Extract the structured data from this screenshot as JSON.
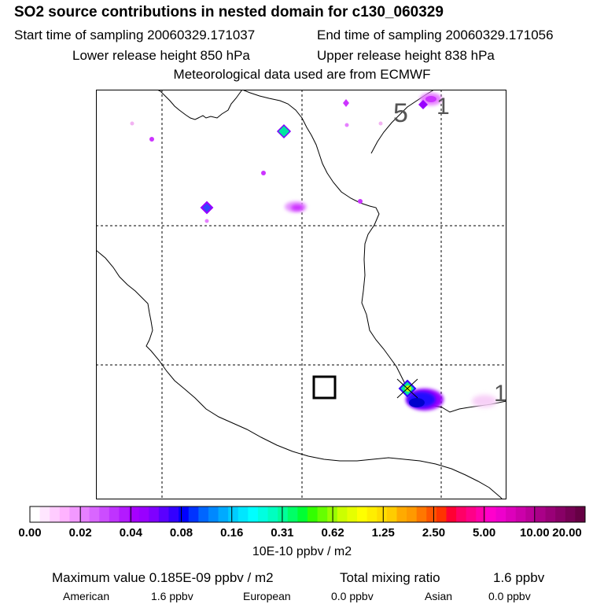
{
  "header": {
    "title": "SO2 source contributions in nested domain for c130_060329",
    "start_time": "Start time of sampling 20060329.171037",
    "end_time": "End time of sampling 20060329.171056",
    "lower_height": "Lower release height  850 hPa",
    "upper_height": "Upper release height  838 hPa",
    "met_data": "Meteorological data used are from ECMWF"
  },
  "map": {
    "annotations": [
      "5",
      "1",
      "1"
    ]
  },
  "colorbar": {
    "tick_labels": [
      "0.00",
      "0.02",
      "0.04",
      "0.08",
      "0.16",
      "0.31",
      "0.62",
      "1.25",
      "2.50",
      "5.00",
      "10.00",
      "20.00"
    ],
    "unit": "10E-10 ppbv / m2",
    "colors": [
      "#ffffff",
      "#ffe6ff",
      "#ffccff",
      "#ffb3ff",
      "#f299ff",
      "#e680ff",
      "#d966ff",
      "#cc4dff",
      "#bf33ff",
      "#b31aff",
      "#a600ff",
      "#9900ff",
      "#7f00ff",
      "#5a00ff",
      "#3300ff",
      "#0000ff",
      "#0033ff",
      "#0066ff",
      "#0088ff",
      "#00aaff",
      "#00ccff",
      "#00e6ff",
      "#00ffff",
      "#00ffe0",
      "#00ffc0",
      "#00ff99",
      "#00ff66",
      "#00ff33",
      "#33ff00",
      "#66ff00",
      "#99ff00",
      "#ccff00",
      "#e6ff00",
      "#ffff00",
      "#ffee00",
      "#ffdd00",
      "#ffcc00",
      "#ffaa00",
      "#ff9900",
      "#ff7700",
      "#ff5500",
      "#ff3300",
      "#ff0033",
      "#ff0066",
      "#ff0088",
      "#ff00aa",
      "#ff00cc",
      "#ee00cc",
      "#dd00bb",
      "#cc00aa",
      "#bb0099",
      "#aa0088",
      "#990077",
      "#880066",
      "#770055",
      "#660044"
    ]
  },
  "summary": {
    "max_value": "Maximum value  0.185E-09 ppbv / m2",
    "total_label": "Total mixing ratio",
    "total_value": "1.6 ppbv",
    "american_label": "American",
    "american_value": "1.6 ppbv",
    "european_label": "European",
    "european_value": "0.0 ppbv",
    "asian_label": "Asian",
    "asian_value": "0.0 ppbv"
  },
  "colors": {
    "light_pink": "#f2b3f2",
    "magenta": "#cc33ff",
    "purple": "#9900ff",
    "blue": "#2211ff",
    "teal": "#00e6a0",
    "yellow_green": "#ccff00"
  }
}
